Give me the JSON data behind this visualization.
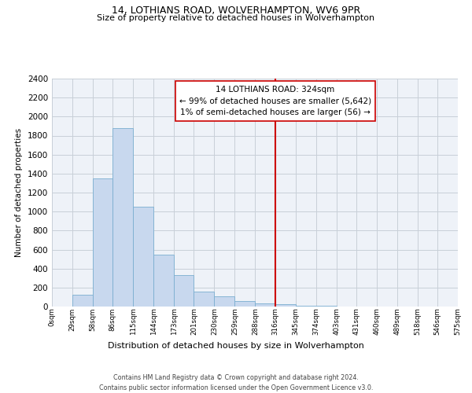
{
  "title1": "14, LOTHIANS ROAD, WOLVERHAMPTON, WV6 9PR",
  "title2": "Size of property relative to detached houses in Wolverhampton",
  "xlabel": "Distribution of detached houses by size in Wolverhampton",
  "ylabel": "Number of detached properties",
  "bin_edges": [
    0,
    29,
    58,
    86,
    115,
    144,
    173,
    201,
    230,
    259,
    288,
    316,
    345,
    374,
    403,
    431,
    460,
    489,
    518,
    546,
    575
  ],
  "bin_heights": [
    0,
    125,
    1350,
    1880,
    1050,
    550,
    335,
    160,
    105,
    60,
    30,
    25,
    10,
    5,
    3,
    2,
    1,
    1,
    0,
    1,
    0
  ],
  "bar_color": "#c8d8ee",
  "bar_edge_color": "#7aaed0",
  "vline_x": 316,
  "vline_color": "#cc0000",
  "annotation_title": "14 LOTHIANS ROAD: 324sqm",
  "annotation_line1": "← 99% of detached houses are smaller (5,642)",
  "annotation_line2": "1% of semi-detached houses are larger (56) →",
  "ylim": [
    0,
    2400
  ],
  "yticks": [
    0,
    200,
    400,
    600,
    800,
    1000,
    1200,
    1400,
    1600,
    1800,
    2000,
    2200,
    2400
  ],
  "xtick_labels": [
    "0sqm",
    "29sqm",
    "58sqm",
    "86sqm",
    "115sqm",
    "144sqm",
    "173sqm",
    "201sqm",
    "230sqm",
    "259sqm",
    "288sqm",
    "316sqm",
    "345sqm",
    "374sqm",
    "403sqm",
    "431sqm",
    "460sqm",
    "489sqm",
    "518sqm",
    "546sqm",
    "575sqm"
  ],
  "footer_line1": "Contains HM Land Registry data © Crown copyright and database right 2024.",
  "footer_line2": "Contains public sector information licensed under the Open Government Licence v3.0.",
  "bg_color": "#ffffff",
  "plot_bg_color": "#eef2f8",
  "grid_color": "#c8cfd8"
}
